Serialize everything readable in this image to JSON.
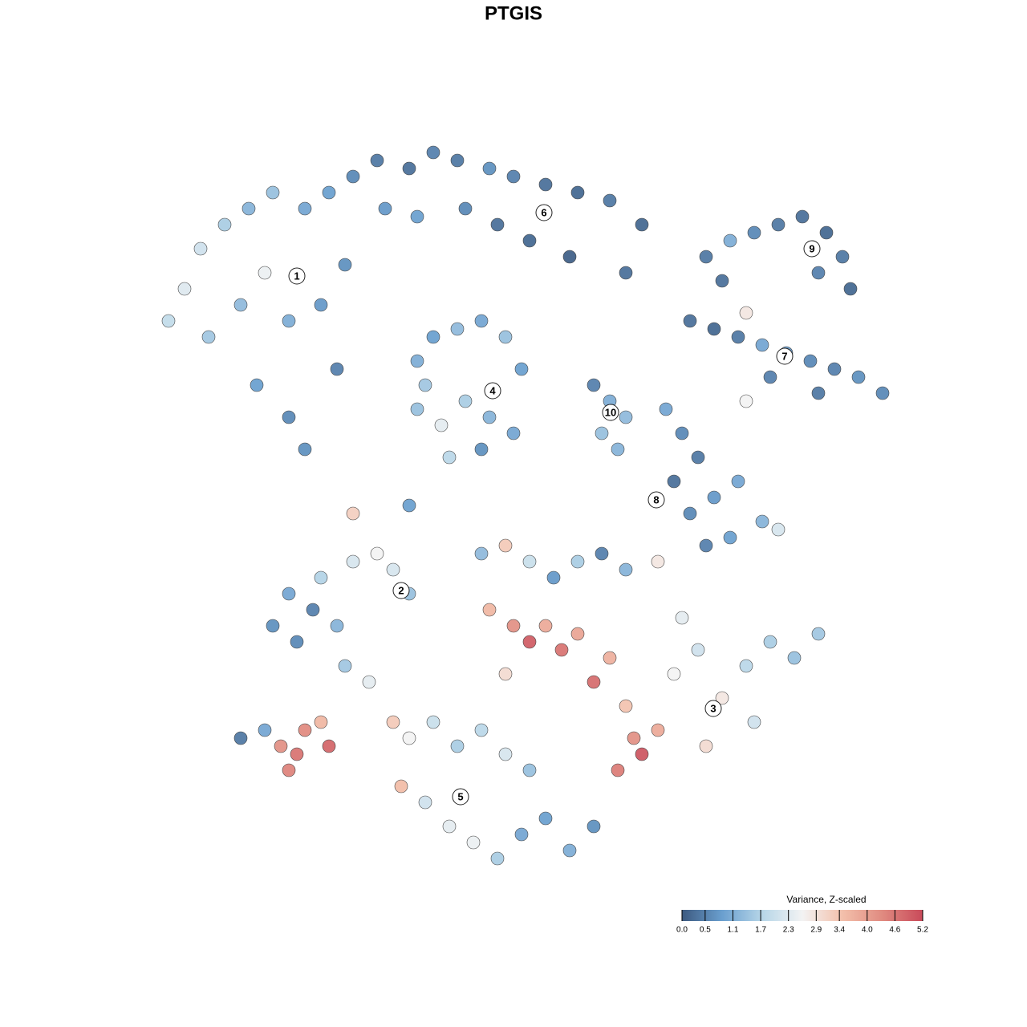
{
  "chart_data": {
    "type": "scatter",
    "title": "PTGIS",
    "xlim": [
      0,
      100
    ],
    "ylim": [
      0,
      100
    ],
    "x": [
      5,
      7,
      9,
      12,
      15,
      18,
      22,
      25,
      10,
      14,
      17,
      20,
      24,
      27,
      16,
      20,
      22,
      26,
      28,
      31,
      35,
      38,
      41,
      45,
      48,
      52,
      56,
      60,
      64,
      32,
      36,
      42,
      46,
      50,
      55,
      62,
      72,
      75,
      78,
      81,
      84,
      87,
      89,
      90,
      74,
      86,
      70,
      73,
      76,
      79,
      82,
      85,
      88,
      91,
      94,
      80,
      86,
      77,
      36,
      38,
      41,
      44,
      47,
      49,
      36,
      39,
      42,
      45,
      48,
      40,
      44,
      37,
      58,
      60,
      62,
      59,
      61,
      67,
      69,
      71,
      68,
      70,
      73,
      76,
      79,
      81,
      75,
      72,
      77,
      18,
      21,
      23,
      26,
      20,
      24,
      28,
      31,
      33,
      35,
      27,
      30,
      44,
      47,
      50,
      53,
      56,
      59,
      62,
      66,
      45,
      48,
      50,
      52,
      54,
      56,
      58,
      60,
      62,
      63,
      64,
      66,
      61,
      68,
      71,
      74,
      77,
      80,
      83,
      86,
      72,
      78,
      69,
      47,
      33,
      35,
      38,
      41,
      44,
      47,
      50,
      34,
      37,
      40,
      43,
      46,
      49,
      52,
      55,
      58,
      14,
      17,
      19,
      21,
      22,
      20,
      24,
      25,
      28,
      35
    ],
    "y": [
      72,
      76,
      81,
      84,
      86,
      88,
      86,
      88,
      70,
      74,
      78,
      72,
      74,
      79,
      64,
      60,
      56,
      66,
      90,
      92,
      91,
      93,
      92,
      91,
      90,
      89,
      88,
      87,
      84,
      86,
      85,
      86,
      84,
      82,
      80,
      78,
      80,
      82,
      83,
      84,
      85,
      83,
      80,
      76,
      77,
      78,
      72,
      71,
      70,
      69,
      68,
      67,
      66,
      65,
      63,
      65,
      63,
      73,
      67,
      70,
      71,
      72,
      70,
      66,
      61,
      59,
      62,
      60,
      58,
      55,
      56,
      64,
      64,
      62,
      60,
      58,
      56,
      61,
      58,
      55,
      52,
      48,
      50,
      52,
      47,
      46,
      45,
      44,
      62,
      34,
      32,
      36,
      34,
      38,
      40,
      42,
      43,
      41,
      38,
      29,
      27,
      43,
      44,
      42,
      40,
      42,
      43,
      41,
      42,
      36,
      34,
      32,
      34,
      31,
      33,
      27,
      30,
      24,
      20,
      18,
      21,
      16,
      28,
      31,
      25,
      29,
      32,
      30,
      33,
      19,
      22,
      35,
      28,
      22,
      20,
      22,
      19,
      21,
      18,
      16,
      14,
      12,
      9,
      7,
      5,
      8,
      10,
      6,
      9,
      20,
      21,
      19,
      18,
      21,
      16,
      22,
      19,
      48,
      49
    ],
    "values": [
      1.9,
      2.3,
      2.1,
      1.6,
      1.2,
      1.4,
      1.0,
      0.9,
      1.5,
      1.3,
      2.5,
      1.1,
      0.8,
      0.7,
      0.9,
      0.6,
      0.7,
      0.5,
      0.6,
      0.4,
      0.3,
      0.5,
      0.4,
      0.7,
      0.5,
      0.3,
      0.2,
      0.4,
      0.2,
      0.8,
      0.9,
      0.6,
      0.3,
      0.2,
      0.1,
      0.3,
      0.4,
      1.1,
      0.6,
      0.4,
      0.3,
      0.2,
      0.4,
      0.2,
      0.3,
      0.5,
      0.3,
      0.2,
      0.4,
      1.0,
      0.8,
      0.6,
      0.5,
      0.7,
      0.6,
      0.5,
      0.4,
      2.8,
      1.1,
      0.9,
      1.3,
      1.0,
      1.4,
      0.9,
      1.4,
      2.4,
      1.6,
      1.2,
      1.0,
      1.8,
      0.7,
      1.5,
      0.5,
      1.1,
      1.3,
      1.4,
      1.2,
      1.0,
      0.6,
      0.4,
      0.3,
      0.6,
      0.8,
      1.0,
      1.2,
      2.2,
      0.9,
      0.5,
      2.6,
      0.7,
      0.6,
      0.5,
      1.2,
      1.0,
      1.7,
      2.2,
      2.6,
      2.2,
      1.4,
      1.5,
      2.4,
      1.3,
      3.3,
      2.0,
      0.8,
      1.6,
      0.5,
      1.2,
      2.8,
      3.6,
      4.2,
      4.9,
      3.8,
      4.6,
      3.9,
      4.7,
      3.7,
      3.4,
      4.2,
      5.0,
      3.8,
      4.5,
      2.6,
      2.1,
      2.8,
      1.8,
      1.6,
      1.4,
      1.5,
      3.0,
      2.1,
      2.4,
      3.0,
      3.3,
      2.6,
      2.0,
      1.6,
      1.8,
      2.2,
      1.4,
      3.5,
      2.1,
      2.4,
      2.5,
      1.6,
      1.0,
      0.9,
      1.1,
      0.7,
      0.4,
      1.0,
      4.2,
      4.6,
      4.3,
      4.4,
      3.6,
      4.8,
      3.2,
      0.9
    ],
    "clusters": {
      "labels": [
        "1",
        "2",
        "3",
        "4",
        "5",
        "6",
        "7",
        "8",
        "9",
        "10"
      ],
      "x": [
        21,
        34,
        72.9,
        45.4,
        41.4,
        51.8,
        81.8,
        65.8,
        85.2,
        60.1
      ],
      "y": [
        77.6,
        38.4,
        23.7,
        63.3,
        12.7,
        85.5,
        67.6,
        49.7,
        81,
        60.6
      ]
    },
    "colorbar": {
      "title": "Variance, Z-scaled",
      "colors": [
        "#3d5a80",
        "#6a9fcf",
        "#b7d6e8",
        "#f3f3f3",
        "#f3c0ab",
        "#e08a80",
        "#c94a5a"
      ],
      "ticks": [
        {
          "value": 0,
          "label": "0.0"
        },
        0.5,
        1.1,
        1.7,
        2.3,
        2.9,
        3.4,
        {
          "value": 4,
          "label": "4.0"
        },
        4.6,
        5.2
      ]
    }
  }
}
